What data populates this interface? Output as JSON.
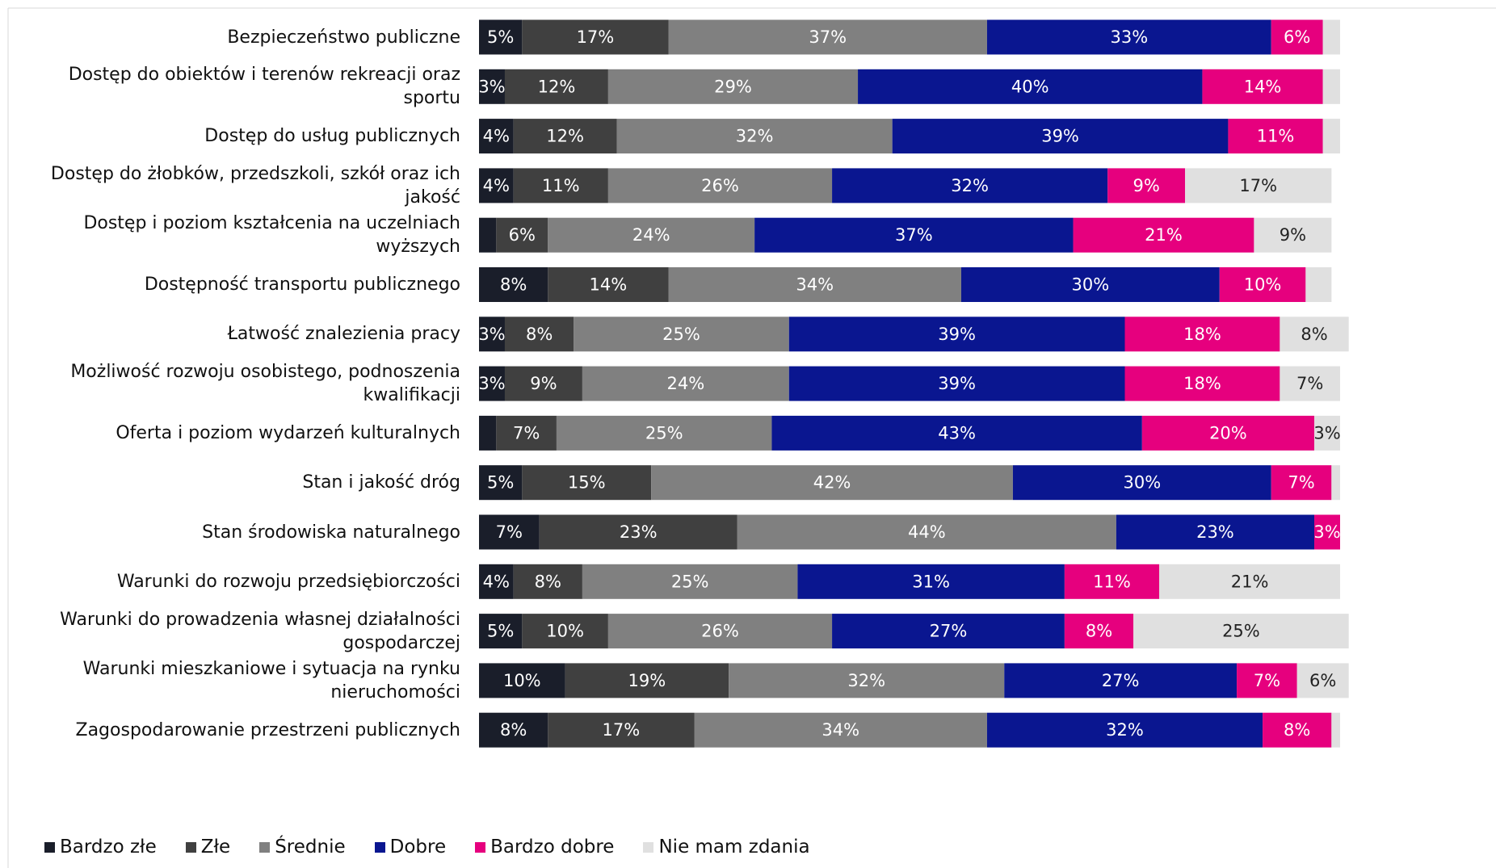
{
  "chart_data": {
    "type": "stacked_bar_horizontal",
    "categories": [
      "Bezpieczeństwo publiczne",
      "Dostęp do obiektów i terenów rekreacji oraz sportu",
      "Dostęp do usług publicznych",
      "Dostęp do żłobków, przedszkoli, szkół oraz ich jakość",
      "Dostęp i poziom kształcenia na uczelniach wyższych",
      "Dostępność transportu publicznego",
      "Łatwość znalezienia pracy",
      "Możliwość rozwoju osobistego, podnoszenia kwalifikacji",
      "Oferta i poziom wydarzeń kulturalnych",
      "Stan i jakość dróg",
      "Stan środowiska naturalnego",
      "Warunki do rozwoju przedsiębiorczości",
      "Warunki do prowadzenia własnej działalności gospodarczej",
      "Warunki mieszkaniowe i sytuacja na rynku nieruchomości",
      "Zagospodarowanie przestrzeni publicznych"
    ],
    "xlim": [
      0,
      100
    ],
    "legend": "bottom",
    "series": [
      {
        "name": "Bardzo złe",
        "color": "#1a1e2a",
        "label_color": "#ffffff",
        "values": [
          5,
          3,
          4,
          4,
          2,
          8,
          3,
          3,
          2,
          5,
          7,
          4,
          5,
          10,
          8
        ],
        "value_labels": [
          "5%",
          "3%",
          "4%",
          "4%",
          null,
          "8%",
          "3%",
          "3%",
          null,
          "5%",
          "7%",
          "4%",
          "5%",
          "10%",
          "8%"
        ]
      },
      {
        "name": "Złe",
        "color": "#404040",
        "label_color": "#ffffff",
        "values": [
          17,
          12,
          12,
          11,
          6,
          14,
          8,
          9,
          7,
          15,
          23,
          8,
          10,
          19,
          17
        ],
        "value_labels": [
          "17%",
          "12%",
          "12%",
          "11%",
          "6%",
          "14%",
          "8%",
          "9%",
          "7%",
          "15%",
          "23%",
          "8%",
          "10%",
          "19%",
          "17%"
        ]
      },
      {
        "name": "Średnie",
        "color": "#808080",
        "label_color": "#ffffff",
        "values": [
          37,
          29,
          32,
          26,
          24,
          34,
          25,
          24,
          25,
          42,
          44,
          25,
          26,
          32,
          34
        ],
        "value_labels": [
          "37%",
          "29%",
          "32%",
          "26%",
          "24%",
          "34%",
          "25%",
          "24%",
          "25%",
          "42%",
          "44%",
          "25%",
          "26%",
          "32%",
          "34%"
        ]
      },
      {
        "name": "Dobre",
        "color": "#0a1690",
        "label_color": "#ffffff",
        "values": [
          33,
          40,
          39,
          32,
          37,
          30,
          39,
          39,
          43,
          30,
          23,
          31,
          27,
          27,
          32
        ],
        "value_labels": [
          "33%",
          "40%",
          "39%",
          "32%",
          "37%",
          "30%",
          "39%",
          "39%",
          "43%",
          "30%",
          "23%",
          "31%",
          "27%",
          "27%",
          "32%"
        ]
      },
      {
        "name": "Bardzo dobre",
        "color": "#e6007e",
        "label_color": "#ffffff",
        "values": [
          6,
          14,
          11,
          9,
          21,
          10,
          18,
          18,
          20,
          7,
          3,
          11,
          8,
          7,
          8
        ],
        "value_labels": [
          "6%",
          "14%",
          "11%",
          "9%",
          "21%",
          "10%",
          "18%",
          "18%",
          "20%",
          "7%",
          "3%",
          "11%",
          "8%",
          "7%",
          "8%"
        ]
      },
      {
        "name": "Nie mam zdania",
        "color": "#e0e0e0",
        "label_color": "#222222",
        "values": [
          2,
          2,
          2,
          17,
          9,
          3,
          8,
          7,
          3,
          1,
          null,
          21,
          25,
          6,
          1
        ],
        "value_labels": [
          null,
          null,
          null,
          "17%",
          "9%",
          null,
          "8%",
          "7%",
          "3%",
          null,
          null,
          "21%",
          "25%",
          "6%",
          null
        ]
      }
    ]
  }
}
